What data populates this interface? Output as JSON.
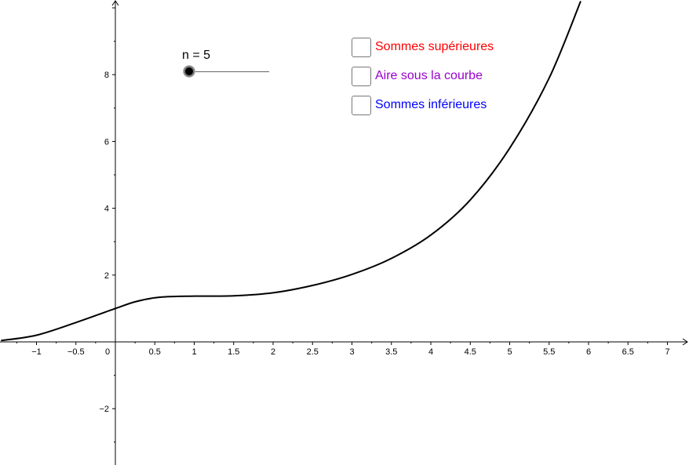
{
  "slider": {
    "label": "n = 5",
    "value": 5
  },
  "checkboxes": [
    {
      "label": "Sommes supérieures",
      "color": "#ff0000",
      "checked": false
    },
    {
      "label": "Aire sous la courbe",
      "color": "#9900cc",
      "checked": false
    },
    {
      "label": "Sommes inférieures",
      "color": "#0000ff",
      "checked": false
    }
  ],
  "chart_data": {
    "type": "line",
    "x_tick_labels": [
      "−1",
      "−0.5",
      "0",
      "0.5",
      "1",
      "1.5",
      "2",
      "2.5",
      "3",
      "3.5",
      "4",
      "4.5",
      "5",
      "5.5",
      "6",
      "6.5",
      "7"
    ],
    "y_tick_labels": [
      "−2",
      "2",
      "4",
      "6",
      "8"
    ],
    "xlim": [
      -1.45,
      7.25
    ],
    "ylim": [
      -3.7,
      10.2
    ],
    "series": [
      {
        "color": "#000000",
        "x": [
          -1.45,
          -1.0,
          -0.5,
          0,
          0.25,
          0.5,
          0.75,
          1.0,
          1.5,
          2.0,
          2.5,
          3.0,
          3.5,
          4.0,
          4.5,
          5.0,
          5.5,
          5.9
        ],
        "y": [
          0.04,
          0.2,
          0.58,
          1.0,
          1.2,
          1.32,
          1.36,
          1.37,
          1.38,
          1.47,
          1.69,
          2.02,
          2.5,
          3.2,
          4.25,
          5.8,
          7.9,
          10.2
        ]
      }
    ]
  }
}
